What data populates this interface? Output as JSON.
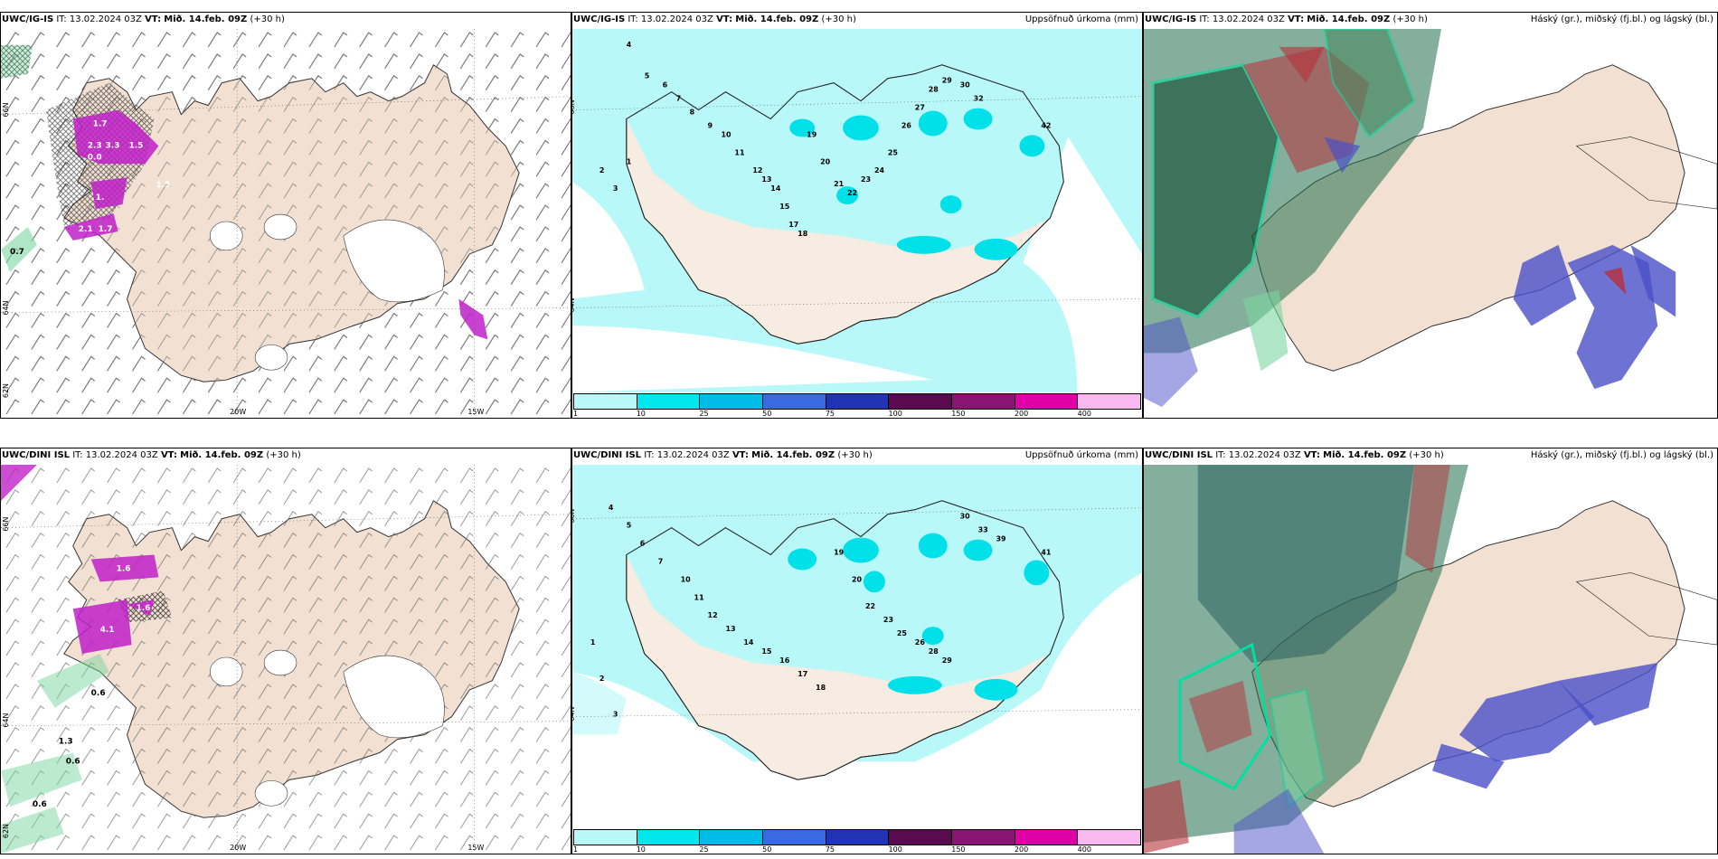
{
  "rows": [
    {
      "model": "UWC/IG-IS",
      "it": "13.02.2024 03Z",
      "vt": "Mið. 14.feb. 09Z",
      "lead": "(+30 h)",
      "wind_values": [
        "1.7",
        "2.3",
        "3.3",
        "1.5",
        "0.0",
        "0.7",
        "1.",
        "2.1",
        "1.7",
        "1.5"
      ],
      "precip_values": [
        "4",
        "5",
        "6",
        "7",
        "8",
        "9",
        "10",
        "11",
        "12",
        "13",
        "14",
        "15",
        "17",
        "18",
        "19",
        "20",
        "21",
        "22",
        "23",
        "24",
        "25",
        "26",
        "27",
        "28",
        "29",
        "30",
        "32",
        "42",
        "2",
        "3",
        "1"
      ],
      "lat_labels": [
        "66N",
        "64N",
        "62N"
      ],
      "lon_labels": [
        "20W",
        "15W"
      ]
    },
    {
      "model": "UWC/DINI ISL",
      "it": "13.02.2024 03Z",
      "vt": "Mið. 14.feb. 09Z",
      "lead": "(+30 h)",
      "wind_values": [
        "1.6",
        "1.6",
        "4.1",
        "1.3",
        "0.6",
        "0.6",
        "0.6"
      ],
      "precip_values": [
        "4",
        "5",
        "6",
        "7",
        "10",
        "11",
        "12",
        "13",
        "14",
        "15",
        "16",
        "17",
        "18",
        "19",
        "20",
        "22",
        "23",
        "25",
        "26",
        "28",
        "29",
        "30",
        "33",
        "39",
        "41",
        "1",
        "2",
        "3"
      ],
      "lat_labels": [
        "66N",
        "64N",
        "62N"
      ],
      "lon_labels": [
        "20W",
        "15W"
      ]
    }
  ],
  "panel_titles": {
    "precip": "Uppsöfnuð úrkoma (mm)",
    "cloud": "Háský (gr.), miðský (fj.bl.) og lágský (bl.)"
  },
  "labels": {
    "it": "IT:",
    "vt": "VT:"
  },
  "colorbar": {
    "ticks": [
      "1",
      "10",
      "25",
      "50",
      "75",
      "100",
      "150",
      "200",
      "400"
    ],
    "colors": [
      "#b8f8f8",
      "#00e8ec",
      "#00bce8",
      "#3a6ae0",
      "#2234b4",
      "#5a0a4e",
      "#8a1474",
      "#e000a8",
      "#f8b8f0"
    ]
  },
  "colors": {
    "land": "#f2e1d2",
    "sea_precip": "#b8f8f8",
    "cyan": "#00e0e8",
    "magenta": "#c020c8",
    "green_dark": "#1f6e4a",
    "green_light": "#7ad6a0",
    "blue_cloud": "#4a50c8",
    "red_cloud": "#b8303a"
  }
}
